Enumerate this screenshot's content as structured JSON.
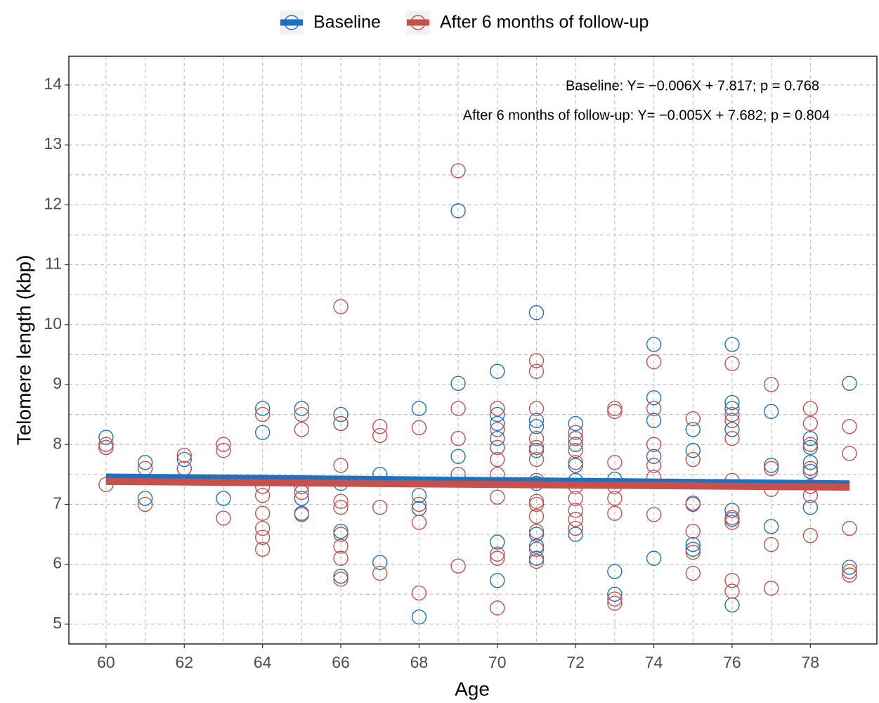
{
  "chart_data": {
    "type": "scatter",
    "x_label": "Age",
    "y_label": "Telomere length (kbp)",
    "xlim": [
      59.05,
      79.7
    ],
    "xticks": [
      60,
      62,
      64,
      66,
      68,
      70,
      72,
      74,
      76,
      78
    ],
    "ylim": [
      4.67,
      14.48
    ],
    "yticks": [
      5,
      6,
      7,
      8,
      9,
      10,
      11,
      12,
      13,
      14
    ],
    "grid": true,
    "legend": "top",
    "annotations": [
      "Baseline: Y= −0.006X + 7.817; p = 0.768",
      "After 6 months of follow-up: Y= −0.005X + 7.682; p = 0.804"
    ],
    "series": [
      {
        "name": "Baseline",
        "color": "#1a72c0",
        "x": [
          60,
          60,
          61,
          61,
          62,
          62,
          63,
          64,
          64,
          65,
          65,
          65,
          66,
          66,
          66,
          66,
          66,
          67,
          67,
          68,
          68,
          68,
          68,
          69,
          69,
          69,
          70,
          70,
          70,
          70,
          70,
          70,
          70,
          71,
          71,
          71,
          71,
          71,
          71,
          71,
          71,
          72,
          72,
          72,
          72,
          72,
          72,
          73,
          73,
          73,
          74,
          74,
          74,
          74,
          74,
          75,
          75,
          75,
          75,
          75,
          76,
          76,
          76,
          76,
          76,
          76,
          76,
          77,
          77,
          77,
          78,
          78,
          78,
          78,
          78,
          79,
          79
        ],
        "values": [
          8.12,
          7.95,
          7.7,
          7.1,
          7.75,
          7.6,
          7.1,
          8.6,
          8.2,
          8.6,
          7.1,
          6.85,
          8.5,
          8.35,
          7.35,
          6.55,
          5.8,
          7.5,
          6.03,
          8.6,
          7.15,
          6.93,
          5.12,
          11.9,
          9.02,
          7.8,
          9.22,
          8.5,
          8.35,
          8.1,
          7.95,
          6.37,
          5.73,
          10.2,
          8.4,
          8.3,
          7.9,
          7.35,
          6.5,
          6.3,
          6.1,
          8.35,
          8.1,
          8.0,
          7.65,
          7.4,
          6.5,
          7.42,
          5.88,
          5.5,
          9.67,
          8.78,
          8.4,
          7.8,
          6.1,
          8.25,
          7.9,
          7.02,
          6.33,
          6.25,
          9.67,
          8.7,
          8.6,
          8.25,
          6.9,
          6.75,
          5.32,
          8.55,
          7.65,
          6.63,
          8.1,
          7.95,
          7.7,
          7.55,
          6.95,
          9.02,
          5.95
        ],
        "fit": {
          "x": [
            60,
            79
          ],
          "values": [
            7.457,
            7.343
          ]
        }
      },
      {
        "name": "After 6 months of follow-up",
        "color": "#c8504c",
        "x": [
          60,
          60,
          60,
          61,
          61,
          62,
          62,
          63,
          63,
          63,
          64,
          64,
          64,
          64,
          64,
          64,
          64,
          65,
          65,
          65,
          65,
          65,
          66,
          66,
          66,
          66,
          66,
          66,
          66,
          66,
          66,
          67,
          67,
          67,
          67,
          68,
          68,
          68,
          68,
          69,
          69,
          69,
          69,
          69,
          70,
          70,
          70,
          70,
          70,
          70,
          70,
          70,
          70,
          71,
          71,
          71,
          71,
          71,
          71,
          71,
          71,
          71,
          71,
          71,
          71,
          71,
          72,
          72,
          72,
          72,
          72,
          72,
          72,
          72,
          72,
          73,
          73,
          73,
          73,
          73,
          73,
          73,
          73,
          74,
          74,
          74,
          74,
          74,
          74,
          75,
          75,
          75,
          75,
          75,
          75,
          76,
          76,
          76,
          76,
          76,
          76,
          76,
          76,
          76,
          77,
          77,
          77,
          77,
          77,
          78,
          78,
          78,
          78,
          78,
          78,
          78,
          79,
          79,
          79,
          79,
          79
        ],
        "values": [
          8.0,
          7.95,
          7.33,
          7.6,
          7.0,
          7.82,
          7.6,
          8.0,
          7.9,
          6.77,
          8.5,
          7.3,
          7.15,
          6.85,
          6.6,
          6.45,
          6.25,
          8.5,
          8.25,
          7.3,
          7.2,
          6.83,
          10.3,
          8.35,
          7.65,
          7.05,
          6.95,
          6.5,
          6.3,
          6.1,
          5.75,
          8.3,
          8.15,
          6.95,
          5.85,
          8.28,
          7.0,
          6.7,
          5.52,
          12.57,
          8.6,
          8.1,
          7.5,
          5.97,
          8.6,
          8.25,
          7.95,
          7.75,
          7.5,
          7.12,
          6.17,
          6.1,
          5.27,
          9.4,
          9.22,
          8.6,
          8.1,
          7.95,
          7.75,
          7.4,
          7.05,
          7.0,
          6.8,
          6.55,
          6.25,
          6.05,
          8.2,
          8.1,
          7.9,
          7.7,
          7.3,
          7.1,
          6.9,
          6.75,
          6.6,
          8.6,
          8.55,
          7.7,
          7.3,
          7.1,
          6.85,
          5.42,
          5.35,
          9.38,
          8.6,
          8.0,
          7.65,
          7.45,
          6.83,
          8.43,
          7.75,
          7.0,
          6.55,
          6.2,
          5.85,
          9.35,
          8.5,
          8.4,
          8.1,
          7.4,
          6.78,
          6.7,
          5.73,
          5.55,
          9.0,
          7.6,
          7.25,
          6.33,
          5.6,
          8.6,
          8.35,
          8.0,
          7.6,
          7.3,
          7.15,
          6.48,
          8.3,
          7.85,
          6.6,
          5.88,
          5.82
        ],
        "fit": {
          "x": [
            60,
            79
          ],
          "values": [
            7.382,
            7.287
          ]
        }
      }
    ]
  }
}
